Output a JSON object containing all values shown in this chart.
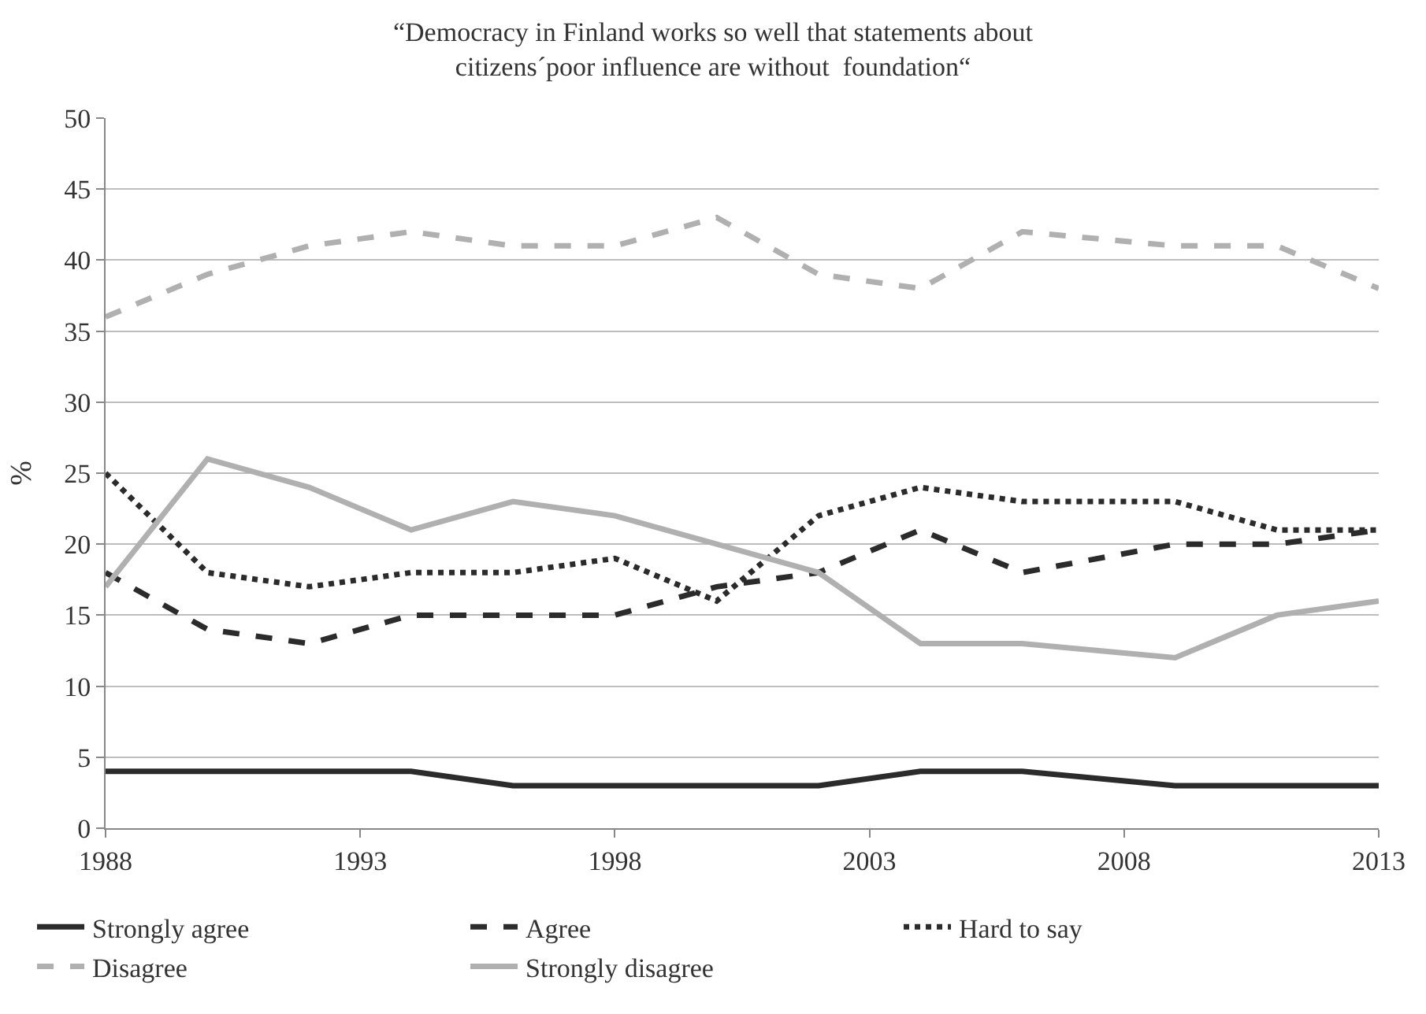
{
  "chart_data": {
    "type": "line",
    "title": "“Democracy in Finland works so well that statements about\ncitizens´poor influence are without  foundation“",
    "ylabel": "%",
    "x": [
      1988,
      1990,
      1992,
      1994,
      1996,
      1998,
      2000,
      2002,
      2004,
      2006,
      2009,
      2011,
      2013
    ],
    "series": [
      {
        "name": "Strongly agree",
        "color": "#2b2b2b",
        "line_style": "solid",
        "values": [
          4,
          4,
          4,
          4,
          3,
          3,
          3,
          3,
          4,
          4,
          3,
          3,
          3
        ]
      },
      {
        "name": "Agree",
        "color": "#2b2b2b",
        "line_style": "dashed",
        "values": [
          18,
          14,
          13,
          15,
          15,
          15,
          17,
          18,
          21,
          18,
          20,
          20,
          21
        ]
      },
      {
        "name": "Hard to say",
        "color": "#2b2b2b",
        "line_style": "dotted",
        "values": [
          25,
          18,
          17,
          18,
          18,
          19,
          16,
          22,
          24,
          23,
          23,
          21,
          21
        ]
      },
      {
        "name": "Disagree",
        "color": "#b0b0b0",
        "line_style": "dashed",
        "values": [
          36,
          39,
          41,
          42,
          41,
          41,
          43,
          39,
          38,
          42,
          41,
          41,
          38
        ]
      },
      {
        "name": "Strongly disagree",
        "color": "#b0b0b0",
        "line_style": "solid",
        "values": [
          17,
          26,
          24,
          21,
          23,
          22,
          20,
          18,
          13,
          13,
          12,
          15,
          16
        ]
      }
    ],
    "xlim": [
      1988,
      2013
    ],
    "xticks": [
      1988,
      1993,
      1998,
      2003,
      2008,
      2013
    ],
    "ylim": [
      0,
      50
    ],
    "yticks": [
      0,
      5,
      10,
      15,
      20,
      25,
      30,
      35,
      40,
      45,
      50
    ],
    "grid": "y",
    "legend": "bottom",
    "marker": "none"
  }
}
